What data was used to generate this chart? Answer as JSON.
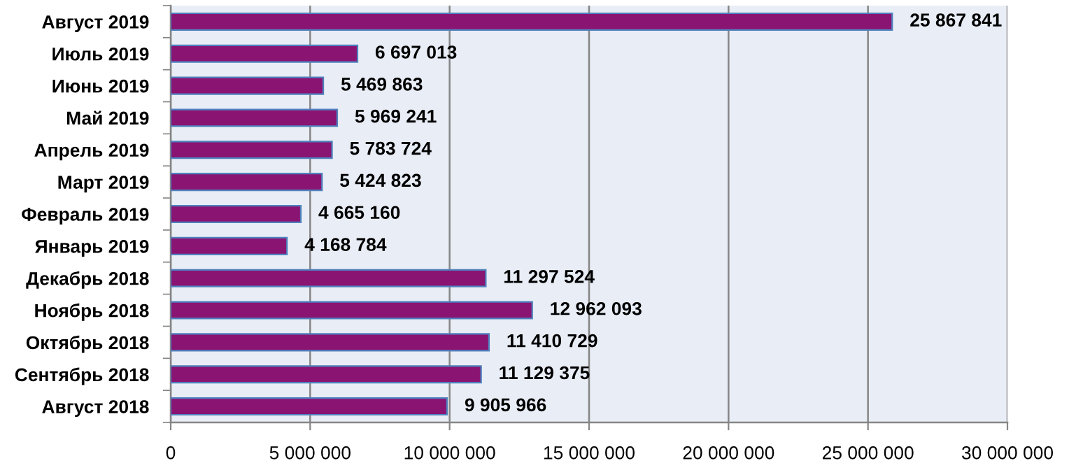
{
  "chart_data": {
    "type": "bar",
    "orientation": "horizontal",
    "categories": [
      "Август 2019",
      "Июль 2019",
      "Июнь 2019",
      "Май 2019",
      "Апрель 2019",
      "Март 2019",
      "Февраль 2019",
      "Январь 2019",
      "Декабрь 2018",
      "Ноябрь 2018",
      "Октябрь 2018",
      "Сентябрь 2018",
      "Август 2018"
    ],
    "values": [
      25867841,
      6697013,
      5469863,
      5969241,
      5783724,
      5424823,
      4665160,
      4168784,
      11297524,
      12962093,
      11410729,
      11129375,
      9905966
    ],
    "value_labels": [
      "25 867 841",
      "6 697 013",
      "5 469 863",
      "5 969 241",
      "5 783 724",
      "5 424 823",
      "4 665 160",
      "4 168 784",
      "11 297 524",
      "12 962 093",
      "11 410 729",
      "11 129 375",
      "9 905 966"
    ],
    "color": "#8a1472",
    "xlim": [
      0,
      30000000
    ],
    "xticks": [
      0,
      {
        "value": 5000000,
        "label": "5 000 000"
      },
      {
        "value": 10000000,
        "label": "10 000 000"
      },
      {
        "value": 15000000,
        "label": "15 000 000"
      },
      {
        "value": 20000000,
        "label": "20 000 000"
      },
      {
        "value": 25000000,
        "label": "25 000 000"
      },
      {
        "value": 30000000,
        "label": "30 000 000"
      }
    ],
    "grid": "x"
  }
}
